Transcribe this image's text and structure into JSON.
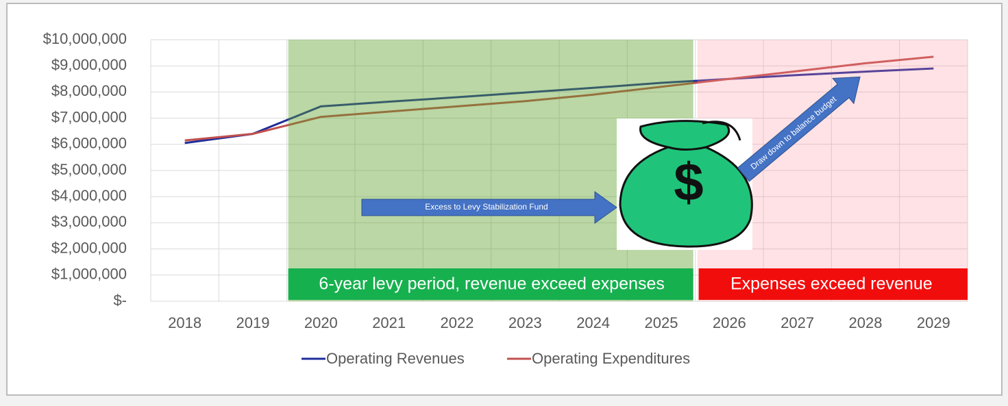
{
  "chart_data": {
    "type": "line",
    "categories": [
      "2018",
      "2019",
      "2020",
      "2021",
      "2022",
      "2023",
      "2024",
      "2025",
      "2026",
      "2027",
      "2028",
      "2029"
    ],
    "series": [
      {
        "name": "Operating Revenues",
        "color": "#1f2d9a",
        "values": [
          6050000,
          6400000,
          7450000,
          7630000,
          7800000,
          7980000,
          8160000,
          8350000,
          8500000,
          8650000,
          8780000,
          8900000
        ]
      },
      {
        "name": "Operating Expenditures",
        "color": "#c0504d",
        "values": [
          6150000,
          6400000,
          7050000,
          7250000,
          7450000,
          7650000,
          7900000,
          8200000,
          8500000,
          8800000,
          9100000,
          9350000
        ]
      }
    ],
    "ylim": [
      0,
      10000000
    ],
    "yticks": [
      {
        "value": 0,
        "label": "$-"
      },
      {
        "value": 1000000,
        "label": "$1,000,000"
      },
      {
        "value": 2000000,
        "label": "$2,000,000"
      },
      {
        "value": 3000000,
        "label": "$3,000,000"
      },
      {
        "value": 4000000,
        "label": "$4,000,000"
      },
      {
        "value": 5000000,
        "label": "$5,000,000"
      },
      {
        "value": 6000000,
        "label": "$6,000,000"
      },
      {
        "value": 7000000,
        "label": "$7,000,000"
      },
      {
        "value": 8000000,
        "label": "$8,000,000"
      },
      {
        "value": 9000000,
        "label": "$9,000,000"
      },
      {
        "value": 10000000,
        "label": "$10,000,000"
      }
    ],
    "grid": true,
    "legend": "bottom",
    "annotations": [
      "6-year levy period, revenue exceed expenses",
      "Expenses exceed revenue",
      "Excess to Levy Stabilization Fund",
      "Draw down to balance budget"
    ]
  }
}
